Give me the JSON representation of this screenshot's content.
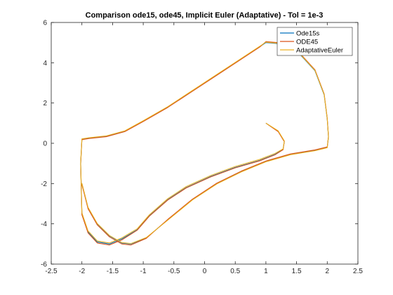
{
  "chart_data": {
    "type": "line",
    "title": "Comparison ode15, ode45, Implicit Euler (Adaptative) - Tol = 1e-3",
    "xlabel": "",
    "ylabel": "",
    "xlim": [
      -2.5,
      2.5
    ],
    "ylim": [
      -6,
      6
    ],
    "xticks": [
      -2.5,
      -2,
      -1.5,
      -1,
      -0.5,
      0,
      0.5,
      1,
      1.5,
      2,
      2.5
    ],
    "xtick_labels": [
      "-2.5",
      "-2",
      "-1.5",
      "-1",
      "-0.5",
      "0",
      "0.5",
      "1",
      "1.5",
      "2",
      "2.5"
    ],
    "yticks": [
      -6,
      -4,
      -2,
      0,
      2,
      4,
      6
    ],
    "ytick_labels": [
      "-6",
      "-4",
      "-2",
      "0",
      "2",
      "4",
      "6"
    ],
    "grid": false,
    "legend_position": "top-right",
    "series": [
      {
        "name": "Ode15s",
        "color": "#0072BD",
        "x": [
          1.0,
          1.2,
          1.3,
          1.28,
          1.15,
          0.9,
          0.5,
          0.1,
          -0.3,
          -0.6,
          -0.9,
          -1.1,
          -1.35,
          -1.55,
          -1.75,
          -1.9,
          -2.0,
          -2.02,
          -2.0,
          -1.9,
          -1.6,
          -1.3,
          -1.0,
          -0.6,
          -0.2,
          0.2,
          0.6,
          0.9,
          1.0,
          1.2,
          1.5,
          1.8,
          1.95,
          2.0,
          2.02,
          2.0,
          1.8,
          1.4,
          1.0,
          0.6,
          0.2,
          -0.2,
          -0.6,
          -0.95,
          -1.2,
          -1.35,
          -1.55,
          -1.75,
          -1.9,
          -2.0
        ],
        "y": [
          1.0,
          0.6,
          0.1,
          -0.3,
          -0.55,
          -0.85,
          -1.2,
          -1.65,
          -2.2,
          -2.8,
          -3.6,
          -4.3,
          -4.75,
          -5.0,
          -4.9,
          -4.4,
          -3.5,
          -1.0,
          0.2,
          0.25,
          0.35,
          0.6,
          1.1,
          1.8,
          2.6,
          3.4,
          4.2,
          4.8,
          5.0,
          4.95,
          4.6,
          3.6,
          2.4,
          1.2,
          0.3,
          -0.2,
          -0.35,
          -0.55,
          -0.9,
          -1.4,
          -2.0,
          -2.8,
          -3.8,
          -4.7,
          -5.0,
          -4.95,
          -4.6,
          -4.0,
          -3.2,
          -2.0
        ]
      },
      {
        "name": "ODE45",
        "color": "#D95319",
        "x": [
          1.0,
          1.2,
          1.3,
          1.28,
          1.15,
          0.9,
          0.5,
          0.1,
          -0.3,
          -0.6,
          -0.9,
          -1.1,
          -1.35,
          -1.55,
          -1.75,
          -1.9,
          -2.0,
          -2.02,
          -2.0,
          -1.9,
          -1.6,
          -1.3,
          -1.0,
          -0.6,
          -0.2,
          0.2,
          0.6,
          0.9,
          1.0,
          1.2,
          1.5,
          1.8,
          1.95,
          2.0,
          2.02,
          2.0,
          1.8,
          1.4,
          1.0,
          0.6,
          0.2,
          -0.2,
          -0.6,
          -0.95,
          -1.2,
          -1.35,
          -1.55,
          -1.75,
          -1.9,
          -2.0
        ],
        "y": [
          1.0,
          0.58,
          0.08,
          -0.32,
          -0.57,
          -0.87,
          -1.22,
          -1.67,
          -2.22,
          -2.82,
          -3.62,
          -4.32,
          -4.8,
          -5.05,
          -4.95,
          -4.45,
          -3.55,
          -1.05,
          0.18,
          0.23,
          0.33,
          0.58,
          1.08,
          1.78,
          2.58,
          3.38,
          4.18,
          4.78,
          5.05,
          5.0,
          4.65,
          3.65,
          2.45,
          1.25,
          0.35,
          -0.18,
          -0.33,
          -0.53,
          -0.88,
          -1.38,
          -1.98,
          -2.78,
          -3.78,
          -4.72,
          -5.05,
          -5.0,
          -4.65,
          -4.05,
          -3.25,
          -2.05
        ]
      },
      {
        "name": "AdaptativeEuler",
        "color": "#EDB120",
        "x": [
          1.0,
          1.2,
          1.3,
          1.28,
          1.15,
          0.9,
          0.5,
          0.1,
          -0.3,
          -0.6,
          -0.9,
          -1.1,
          -1.35,
          -1.55,
          -1.75,
          -1.9,
          -2.0,
          -2.02,
          -2.0,
          -1.9,
          -1.6,
          -1.3,
          -1.0,
          -0.6,
          -0.2,
          0.2,
          0.6,
          0.9,
          1.0,
          1.2,
          1.5,
          1.8,
          1.95,
          2.0,
          2.02,
          2.0,
          1.8,
          1.4,
          1.0,
          0.6,
          0.2,
          -0.2,
          -0.6,
          -0.95,
          -1.2,
          -1.35,
          -1.55,
          -1.75,
          -1.9,
          -2.0
        ],
        "y": [
          1.0,
          0.62,
          0.12,
          -0.28,
          -0.5,
          -0.8,
          -1.15,
          -1.6,
          -2.15,
          -2.75,
          -3.55,
          -4.25,
          -4.7,
          -4.95,
          -4.85,
          -4.35,
          -3.45,
          -0.95,
          0.22,
          0.27,
          0.37,
          0.62,
          1.12,
          1.82,
          2.62,
          3.42,
          4.22,
          4.82,
          5.02,
          4.97,
          4.62,
          3.62,
          2.42,
          1.22,
          0.32,
          -0.22,
          -0.37,
          -0.57,
          -0.92,
          -1.42,
          -2.02,
          -2.82,
          -3.82,
          -4.68,
          -4.98,
          -4.93,
          -4.58,
          -3.98,
          -3.18,
          -1.98
        ]
      }
    ]
  }
}
